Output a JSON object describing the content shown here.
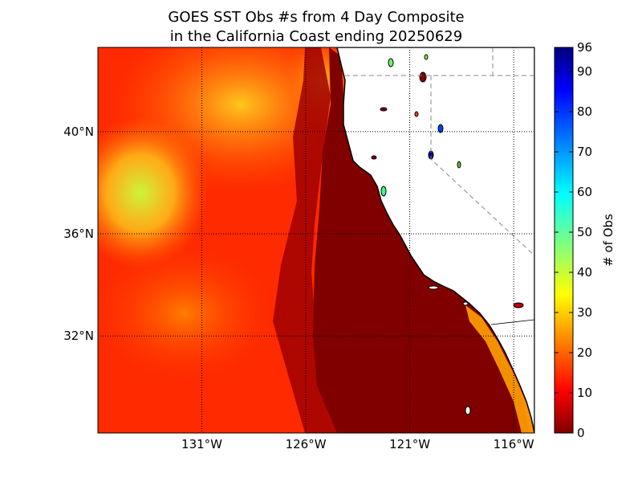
{
  "title": {
    "line1": "GOES SST Obs #s from 4 Day Composite",
    "line2": "in the California Coast ending 20250629"
  },
  "map": {
    "lon_labels": [
      "131°W",
      "126°W",
      "121°W",
      "116°W"
    ],
    "lat_labels": [
      "40°N",
      "36°N",
      "32°N"
    ],
    "lon_values": [
      -131,
      -126,
      -121,
      -116
    ],
    "lat_values": [
      40,
      36,
      32
    ],
    "lon_range": [
      -136,
      -115
    ],
    "lat_range": [
      28.2,
      43.3
    ]
  },
  "colorbar": {
    "label": "# of Obs",
    "ticks": [
      "0",
      "10",
      "20",
      "30",
      "40",
      "50",
      "60",
      "70",
      "80",
      "90",
      "96"
    ],
    "range": [
      0,
      96
    ],
    "colormap": "jet"
  },
  "colors": {
    "ocean_low": "#800000",
    "ocean_mid": "#ff2000",
    "ocean_high": "#ffff30",
    "land": "#ffffff"
  }
}
